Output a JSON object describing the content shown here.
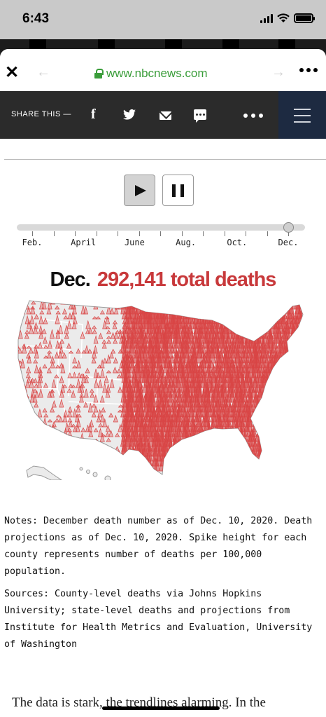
{
  "status": {
    "time": "6:43"
  },
  "browser": {
    "url": "www.nbcnews.com"
  },
  "share_bar": {
    "label": "SHARE THIS —"
  },
  "timeline": {
    "months": [
      "Feb.",
      "April",
      "June",
      "Aug.",
      "Oct.",
      "Dec."
    ],
    "position": 1.0
  },
  "map": {
    "month": "Dec.",
    "total": "292,141 total deaths",
    "spike_color": "#d94545"
  },
  "notes": "Notes: December death number as of Dec. 10, 2020. Death projections as of Dec. 10, 2020. Spike height for each county represents number of deaths per 100,000 population.",
  "sources": "Sources: County-level deaths via Johns Hopkins University; state-level deaths and projections from Institute for Health Metrics and Evaluation, University of Washington",
  "body_text": "The data is stark, the trendlines alarming. In the"
}
